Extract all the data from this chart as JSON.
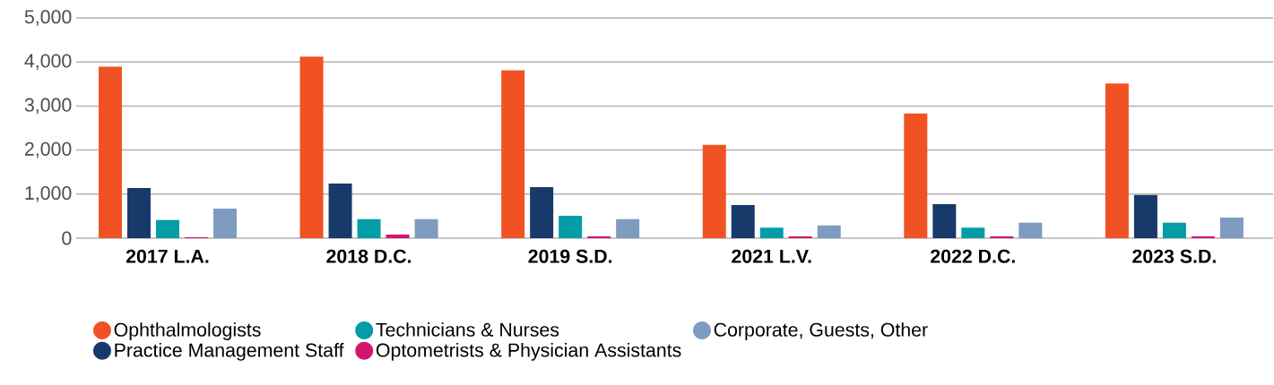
{
  "chart_data": {
    "type": "bar",
    "categories": [
      "2017 L.A.",
      "2018 D.C.",
      "2019 S.D.",
      "2021 L.V.",
      "2022 D.C.",
      "2023 S.D."
    ],
    "series": [
      {
        "name": "Ophthalmologists",
        "color": "#f15224",
        "values": [
          3890,
          4120,
          3810,
          2120,
          2830,
          3510
        ]
      },
      {
        "name": "Practice Management Staff",
        "color": "#173a6b",
        "values": [
          1140,
          1240,
          1160,
          750,
          770,
          980
        ]
      },
      {
        "name": "Technicians & Nurses",
        "color": "#029da7",
        "values": [
          410,
          430,
          510,
          240,
          240,
          350
        ]
      },
      {
        "name": "Optometrists & Physician Assistants",
        "color": "#d3156f",
        "values": [
          20,
          80,
          40,
          40,
          40,
          40
        ]
      },
      {
        "name": "Corporate, Guests, Other",
        "color": "#7f9bbf",
        "values": [
          670,
          430,
          430,
          290,
          350,
          470
        ]
      }
    ],
    "ylim": [
      0,
      5000
    ],
    "yticks": [
      {
        "value": 0,
        "label": "0"
      },
      {
        "value": 1000,
        "label": "1,000"
      },
      {
        "value": 2000,
        "label": "2,000"
      },
      {
        "value": 3000,
        "label": "3,000"
      },
      {
        "value": 4000,
        "label": "4,000"
      },
      {
        "value": 5000,
        "label": "5,000"
      }
    ],
    "grid": "y",
    "legend": "bottom"
  }
}
